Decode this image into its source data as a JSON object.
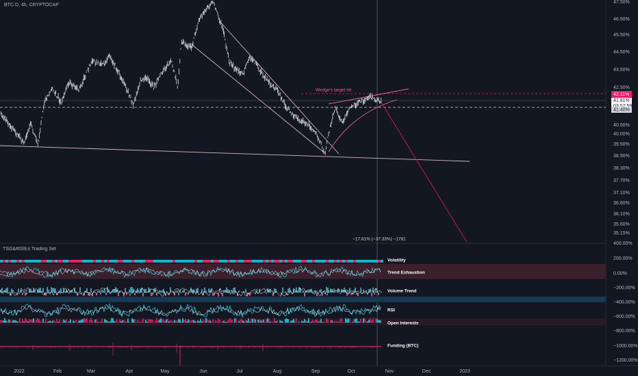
{
  "header": {
    "symbol": "BTC.D, 4h, CRYPTOCAP"
  },
  "price_axis": {
    "labels": [
      "47.50%",
      "46.50%",
      "45.50%",
      "44.50%",
      "43.50%",
      "42.50%",
      "40.50%",
      "40.00%",
      "39.50%",
      "38.90%",
      "38.30%",
      "37.70%",
      "37.10%",
      "36.60%",
      "36.10%",
      "35.60%",
      "35.15%",
      "400.00%"
    ]
  },
  "price_badges": {
    "level_high": "42.11%",
    "current": "41.81%",
    "countdown": "03:57:59",
    "level_low": "41.40%"
  },
  "annotations": {
    "wedge": "Wedge's target hit",
    "measure": "−17.81% (−37.33%) −1781"
  },
  "indicator": {
    "title": "TSG&#039;s Trading Set",
    "axis_labels": [
      "200.00%",
      "0.00%",
      "−200.00%",
      "−400.00%",
      "−600.00%",
      "−800.00%",
      "−1000.00%",
      "−1200.00%"
    ],
    "plots": [
      "Volatility",
      "Trend Exhaustion",
      "Volume Trend",
      "RSI",
      "Open Interests",
      "Funding (BTC)"
    ]
  },
  "time_axis": {
    "labels": [
      "2022",
      "Feb",
      "Mar",
      "Apr",
      "May",
      "Jun",
      "Jul",
      "Aug",
      "Sep",
      "Oct",
      "Nov",
      "Dec",
      "2023"
    ]
  }
}
